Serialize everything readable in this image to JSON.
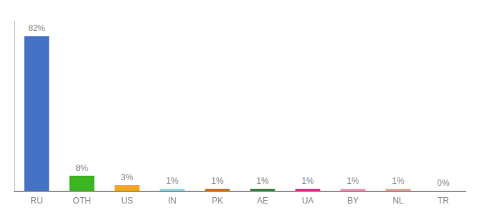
{
  "chart_data": {
    "type": "bar",
    "categories": [
      "RU",
      "OTH",
      "US",
      "IN",
      "PK",
      "AE",
      "UA",
      "BY",
      "NL",
      "TR"
    ],
    "values": [
      82,
      8,
      3,
      1,
      1,
      1,
      1,
      1,
      1,
      0
    ],
    "value_labels": [
      "82%",
      "8%",
      "3%",
      "1%",
      "1%",
      "1%",
      "1%",
      "1%",
      "1%",
      "0%"
    ],
    "colors": [
      "#4472c4",
      "#3cb520",
      "#f5a623",
      "#88d8f0",
      "#d4690a",
      "#2e7d32",
      "#e91e8c",
      "#f48fb1",
      "#e8a090",
      "#bbbbbb"
    ],
    "ylim": [
      0,
      90
    ],
    "grid": false,
    "data_labels": true,
    "tick_labels": "x"
  }
}
